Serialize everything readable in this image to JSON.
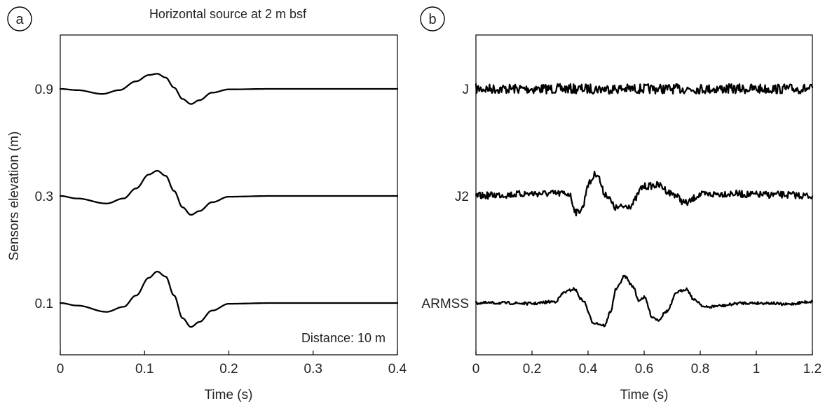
{
  "chart_data": [
    {
      "panel": "a",
      "type": "line",
      "title": "Horizontal source at 2 m bsf",
      "xlabel": "Time (s)",
      "ylabel": "Sensors elevation (m)",
      "xlim": [
        0,
        0.4
      ],
      "xticks": [
        "0",
        "0.1",
        "0.2",
        "0.3",
        "0.4"
      ],
      "yticks": [
        "0.9",
        "0.3",
        "0.1"
      ],
      "annotation": "Distance: 10 m",
      "grid": false,
      "series": [
        {
          "name": "0.9",
          "x": [
            0,
            0.02,
            0.05,
            0.07,
            0.09,
            0.105,
            0.115,
            0.125,
            0.135,
            0.145,
            0.155,
            0.165,
            0.18,
            0.2,
            0.25,
            0.3,
            0.4
          ],
          "y": [
            0,
            -0.05,
            -0.2,
            -0.05,
            0.3,
            0.55,
            0.6,
            0.45,
            0.05,
            -0.4,
            -0.6,
            -0.45,
            -0.15,
            -0.02,
            0,
            0,
            0
          ]
        },
        {
          "name": "0.3",
          "x": [
            0,
            0.02,
            0.055,
            0.075,
            0.09,
            0.105,
            0.115,
            0.125,
            0.135,
            0.145,
            0.155,
            0.165,
            0.18,
            0.2,
            0.25,
            0.3,
            0.4
          ],
          "y": [
            0,
            -0.1,
            -0.3,
            -0.1,
            0.3,
            0.85,
            1.0,
            0.8,
            0.2,
            -0.45,
            -0.75,
            -0.6,
            -0.25,
            -0.03,
            0,
            0,
            0
          ]
        },
        {
          "name": "0.1",
          "x": [
            0,
            0.02,
            0.055,
            0.075,
            0.09,
            0.105,
            0.115,
            0.125,
            0.135,
            0.145,
            0.155,
            0.165,
            0.18,
            0.2,
            0.25,
            0.3,
            0.4
          ],
          "y": [
            0,
            -0.1,
            -0.35,
            -0.15,
            0.3,
            1.0,
            1.25,
            1.05,
            0.3,
            -0.6,
            -0.95,
            -0.75,
            -0.3,
            -0.03,
            0,
            0,
            0
          ]
        }
      ]
    },
    {
      "panel": "b",
      "type": "line",
      "xlabel": "Time (s)",
      "xlim": [
        0,
        1.2
      ],
      "xticks": [
        "0",
        "0.2",
        "0.4",
        "0.6",
        "0.8",
        "1",
        "1.2"
      ],
      "grid": false,
      "series": [
        {
          "name": "J",
          "x": [
            0,
            0.1,
            0.2,
            0.3,
            0.4,
            0.5,
            0.6,
            0.7,
            0.8,
            0.9,
            1.0,
            1.1,
            1.2
          ],
          "y": [
            0,
            0,
            0,
            0,
            0,
            0,
            0,
            0,
            0,
            0,
            0,
            0,
            0
          ]
        },
        {
          "name": "J2",
          "x": [
            0,
            0.1,
            0.2,
            0.3,
            0.33,
            0.36,
            0.38,
            0.4,
            0.43,
            0.46,
            0.5,
            0.55,
            0.6,
            0.65,
            0.7,
            0.75,
            0.8,
            0.9,
            1.0,
            1.1,
            1.2
          ],
          "y": [
            0,
            0.05,
            0.1,
            0.1,
            0.1,
            -0.7,
            -0.5,
            0.5,
            0.95,
            0.1,
            -0.5,
            -0.4,
            0.4,
            0.45,
            0.1,
            -0.3,
            0.05,
            0.1,
            0.05,
            0.05,
            0
          ]
        },
        {
          "name": "ARMSS",
          "x": [
            0,
            0.1,
            0.2,
            0.28,
            0.32,
            0.35,
            0.38,
            0.42,
            0.46,
            0.48,
            0.5,
            0.53,
            0.56,
            0.58,
            0.6,
            0.63,
            0.65,
            0.68,
            0.72,
            0.75,
            0.78,
            0.82,
            0.87,
            0.95,
            1.05,
            1.1,
            1.2
          ],
          "y": [
            0,
            0,
            -0.02,
            0.05,
            0.4,
            0.5,
            0.1,
            -0.7,
            -0.8,
            -0.3,
            0.5,
            0.95,
            0.6,
            0.1,
            0.2,
            -0.5,
            -0.6,
            -0.3,
            0.4,
            0.5,
            0.1,
            -0.15,
            -0.1,
            0.0,
            0.0,
            -0.05,
            0.05
          ]
        }
      ]
    }
  ],
  "panels": {
    "a_letter": "a",
    "b_letter": "b"
  }
}
